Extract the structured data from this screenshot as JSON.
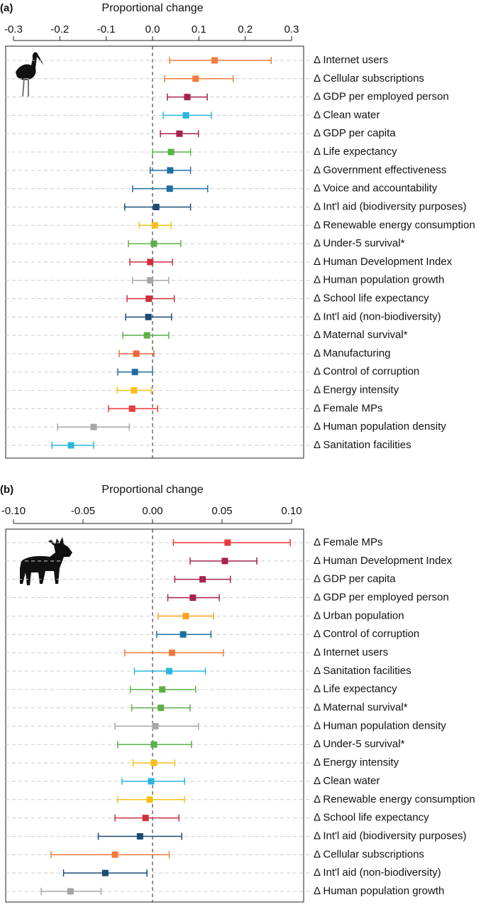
{
  "chart_data": [
    {
      "type": "forest",
      "panel": "(a)",
      "xlabel": "Proportional change",
      "xlim": [
        -0.3,
        0.3
      ],
      "xticks": [
        -0.3,
        -0.2,
        -0.1,
        {
          "value": 0,
          "label": "0.0"
        },
        0.1,
        0.2,
        0.3
      ],
      "categories": [
        "Δ Internet users",
        "Δ Cellular subscriptions",
        "Δ GDP per employed person",
        "Δ Clean water",
        "Δ GDP per capita",
        "Δ Life expectancy",
        "Δ Government effectiveness",
        "Δ Voice and accountability",
        "Δ Int'l aid (biodiversity purposes)",
        "Δ Renewable energy consumption",
        "Δ Under-5 survival*",
        "Δ Human Development Index",
        "Δ Human population growth",
        "Δ School life expectancy",
        "Δ Int'l aid (non-biodiversity)",
        "Δ Maternal survival*",
        "Δ Manufacturing",
        "Δ Control of corruption",
        "Δ Energy intensity",
        "Δ Female MPs",
        "Δ Human population density",
        "Δ Sanitation facilities"
      ],
      "values": [
        0.134,
        0.093,
        0.075,
        0.072,
        0.058,
        0.04,
        0.038,
        0.037,
        0.008,
        0.005,
        0.003,
        -0.005,
        -0.005,
        -0.008,
        -0.009,
        -0.012,
        -0.035,
        -0.038,
        -0.04,
        -0.044,
        -0.127,
        -0.176
      ],
      "lower": [
        0.037,
        0.026,
        0.032,
        0.023,
        0.017,
        0.0,
        -0.005,
        -0.043,
        -0.06,
        -0.029,
        -0.052,
        -0.049,
        -0.043,
        -0.055,
        -0.058,
        -0.064,
        -0.072,
        -0.075,
        -0.076,
        -0.095,
        -0.205,
        -0.217
      ],
      "upper": [
        0.256,
        0.174,
        0.118,
        0.127,
        0.099,
        0.082,
        0.082,
        0.119,
        0.082,
        0.04,
        0.061,
        0.043,
        0.035,
        0.047,
        0.041,
        0.035,
        0.003,
        0.0,
        -0.003,
        0.011,
        -0.05,
        -0.127
      ],
      "colors": [
        "#f47a3c",
        "#f47a3c",
        "#a8224f",
        "#29b6e0",
        "#a8224f",
        "#5bb04a",
        "#1f6fa3",
        "#1f6fa3",
        "#1c4a76",
        "#f6bf1a",
        "#5bb04a",
        "#cf2f3f",
        "#a6a6a6",
        "#cf2f3f",
        "#1c4a76",
        "#5bb04a",
        "#f0643a",
        "#1f6fa3",
        "#f6bf1a",
        "#e8393c",
        "#a6a6a6",
        "#29b6e0"
      ]
    },
    {
      "type": "forest",
      "panel": "(b)",
      "xlabel": "Proportional change",
      "xlim": [
        -0.1,
        0.1
      ],
      "xticks": [
        {
          "value": -0.1,
          "label": "-0.10"
        },
        {
          "value": -0.05,
          "label": "-0.05"
        },
        {
          "value": 0,
          "label": "0.00"
        },
        {
          "value": 0.05,
          "label": "0.05"
        },
        {
          "value": 0.1,
          "label": "0.10"
        }
      ],
      "categories": [
        "Δ Female MPs",
        "Δ Human Development Index",
        "Δ GDP per capita",
        "Δ GDP per employed person",
        "Δ Urban population",
        "Δ Control of corruption",
        "Δ Internet users",
        "Δ Sanitation facilities",
        "Δ Life expectancy",
        "Δ Maternal survival*",
        "Δ Human population density",
        "Δ Under-5 survival*",
        "Δ Energy intensity",
        "Δ Clean water",
        "Δ Renewable energy consumption",
        "Δ School life expectancy",
        "Δ Int'l aid (biodiversity purposes)",
        "Δ Cellular subscriptions",
        "Δ Int'l aid (non-biodiversity)",
        "Δ Human population growth"
      ],
      "values": [
        0.054,
        0.052,
        0.036,
        0.029,
        0.024,
        0.022,
        0.014,
        0.012,
        0.007,
        0.006,
        0.002,
        0.001,
        0.001,
        -0.001,
        -0.002,
        -0.005,
        -0.009,
        -0.027,
        -0.034,
        -0.059
      ],
      "lower": [
        0.015,
        0.027,
        0.016,
        0.011,
        0.004,
        0.003,
        -0.02,
        -0.013,
        -0.016,
        -0.015,
        -0.027,
        -0.025,
        -0.014,
        -0.022,
        -0.025,
        -0.027,
        -0.039,
        -0.073,
        -0.064,
        -0.08
      ],
      "upper": [
        0.099,
        0.075,
        0.056,
        0.048,
        0.044,
        0.042,
        0.051,
        0.038,
        0.031,
        0.027,
        0.033,
        0.028,
        0.016,
        0.023,
        0.023,
        0.019,
        0.021,
        0.012,
        -0.004,
        -0.037
      ],
      "colors": [
        "#e8393c",
        "#a8224f",
        "#a8224f",
        "#a8224f",
        "#f7a321",
        "#1f6fa3",
        "#f47a3c",
        "#29b6e0",
        "#5bb04a",
        "#5bb04a",
        "#a6a6a6",
        "#5bb04a",
        "#f6bf1a",
        "#29b6e0",
        "#f6bf1a",
        "#cf2f3f",
        "#1c4a76",
        "#f47a3c",
        "#1c4a76",
        "#a6a6a6"
      ]
    }
  ]
}
